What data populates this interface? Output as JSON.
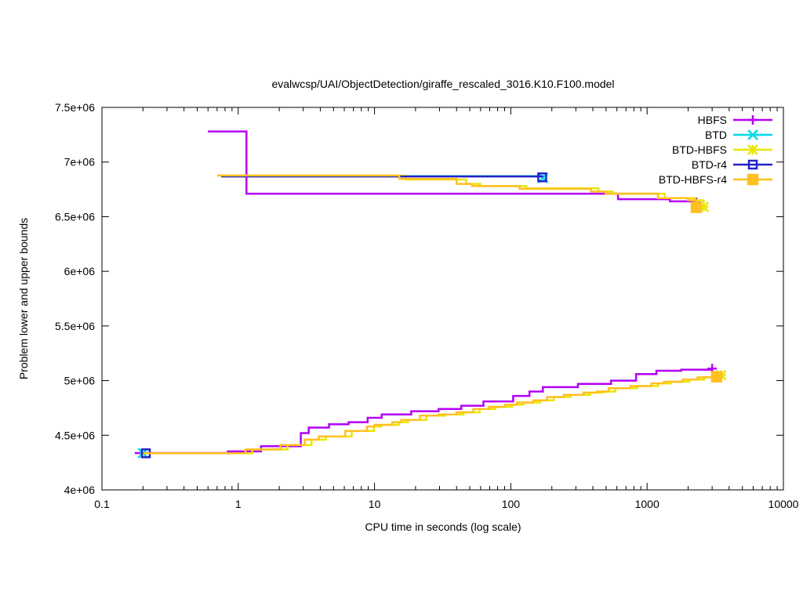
{
  "chart_data": {
    "type": "line",
    "title": "evalwcsp/UAI/ObjectDetection/giraffe_rescaled_3016.K10.F100.model",
    "xlabel": "CPU time in seconds (log scale)",
    "ylabel": "Problem lower and upper bounds",
    "xscale": "log",
    "xlim": [
      0.1,
      10000
    ],
    "ylim": [
      4000000,
      7500000
    ],
    "xticks": [
      {
        "v": 0.1,
        "label": "0.1"
      },
      {
        "v": 1,
        "label": "1"
      },
      {
        "v": 10,
        "label": "10"
      },
      {
        "v": 100,
        "label": "100"
      },
      {
        "v": 1000,
        "label": "1000"
      },
      {
        "v": 10000,
        "label": "10000"
      }
    ],
    "yticks": [
      {
        "v": 4000000,
        "label": "4e+06"
      },
      {
        "v": 4500000,
        "label": "4.5e+06"
      },
      {
        "v": 5000000,
        "label": "5e+06"
      },
      {
        "v": 5500000,
        "label": "5.5e+06"
      },
      {
        "v": 6000000,
        "label": "6e+06"
      },
      {
        "v": 6500000,
        "label": "6.5e+06"
      },
      {
        "v": 7000000,
        "label": "7e+06"
      },
      {
        "v": 7500000,
        "label": "7.5e+06"
      }
    ],
    "legend_position": "top-right",
    "series": [
      {
        "name": "HBFS",
        "color": "#b400f5",
        "marker": "plus",
        "upper": [
          [
            0.6,
            7280000
          ],
          [
            1.15,
            6710000
          ],
          [
            612,
            6660000
          ],
          [
            1470,
            6640000
          ],
          [
            2300,
            6630000
          ]
        ],
        "lower": [
          [
            0.174,
            4337000
          ],
          [
            0.84,
            4352000
          ],
          [
            1.47,
            4400000
          ],
          [
            2.88,
            4520000
          ],
          [
            3.29,
            4570000
          ],
          [
            4.64,
            4600000
          ],
          [
            6.45,
            4620000
          ],
          [
            8.9,
            4660000
          ],
          [
            11.3,
            4690000
          ],
          [
            18.6,
            4720000
          ],
          [
            29.5,
            4740000
          ],
          [
            43.3,
            4770000
          ],
          [
            63,
            4810000
          ],
          [
            104,
            4860000
          ],
          [
            137,
            4900000
          ],
          [
            172,
            4940000
          ],
          [
            311,
            4970000
          ],
          [
            544,
            5000000
          ],
          [
            830,
            5060000
          ],
          [
            1170,
            5090000
          ],
          [
            1780,
            5100000
          ],
          [
            3000,
            5110000
          ]
        ]
      },
      {
        "name": "BTD",
        "color": "#00dce6",
        "marker": "cross",
        "upper": [
          [
            0.75,
            6870000
          ],
          [
            172,
            6855000
          ]
        ],
        "lower": [
          [
            0.19,
            4336000
          ],
          [
            0.2,
            4336000
          ]
        ]
      },
      {
        "name": "BTD-HBFS",
        "color": "#e8e800",
        "marker": "star",
        "upper": [
          [
            0.7,
            6875000
          ],
          [
            17,
            6840000
          ],
          [
            47,
            6800000
          ],
          [
            60,
            6780000
          ],
          [
            130,
            6760000
          ],
          [
            440,
            6730000
          ],
          [
            560,
            6710000
          ],
          [
            1350,
            6670000
          ],
          [
            2250,
            6650000
          ],
          [
            2600,
            6590000
          ]
        ],
        "lower": [
          [
            0.2,
            4335000
          ],
          [
            1.27,
            4370000
          ],
          [
            2.3,
            4410000
          ],
          [
            3.45,
            4460000
          ],
          [
            4.4,
            4490000
          ],
          [
            6.8,
            4540000
          ],
          [
            9.9,
            4580000
          ],
          [
            11.2,
            4595000
          ],
          [
            15.1,
            4620000
          ],
          [
            17.6,
            4640000
          ],
          [
            24,
            4680000
          ],
          [
            33,
            4690000
          ],
          [
            45,
            4710000
          ],
          [
            59,
            4740000
          ],
          [
            77,
            4760000
          ],
          [
            102,
            4780000
          ],
          [
            124,
            4800000
          ],
          [
            164,
            4820000
          ],
          [
            207,
            4850000
          ],
          [
            274,
            4870000
          ],
          [
            382,
            4890000
          ],
          [
            478,
            4900000
          ],
          [
            585,
            4930000
          ],
          [
            845,
            4950000
          ],
          [
            1200,
            4975000
          ],
          [
            1490,
            4990000
          ],
          [
            2040,
            5010000
          ],
          [
            2620,
            5030000
          ],
          [
            3500,
            5050000
          ]
        ]
      },
      {
        "name": "BTD-r4",
        "color": "#2222c8",
        "marker": "square-open",
        "upper": [
          [
            0.75,
            6868000
          ],
          [
            168,
            6868000
          ],
          [
            170,
            6860000
          ]
        ],
        "lower": [
          [
            0.2,
            4335000
          ],
          [
            0.21,
            4335000
          ]
        ]
      },
      {
        "name": "BTD-HBFS-r4",
        "color": "#ffc020",
        "marker": "square-filled",
        "upper": [
          [
            0.7,
            6877000
          ],
          [
            15.2,
            6845000
          ],
          [
            40,
            6800000
          ],
          [
            52,
            6780000
          ],
          [
            116,
            6755000
          ],
          [
            388,
            6730000
          ],
          [
            497,
            6710000
          ],
          [
            1200,
            6670000
          ],
          [
            2000,
            6650000
          ],
          [
            2300,
            6585000
          ]
        ],
        "lower": [
          [
            0.2,
            4335000
          ],
          [
            1.13,
            4370000
          ],
          [
            2.04,
            4410000
          ],
          [
            3.08,
            4460000
          ],
          [
            3.9,
            4490000
          ],
          [
            6.1,
            4540000
          ],
          [
            8.8,
            4580000
          ],
          [
            10,
            4595000
          ],
          [
            13.5,
            4620000
          ],
          [
            15.7,
            4640000
          ],
          [
            21.5,
            4680000
          ],
          [
            29.5,
            4690000
          ],
          [
            40,
            4710000
          ],
          [
            53,
            4740000
          ],
          [
            69,
            4760000
          ],
          [
            91,
            4780000
          ],
          [
            111,
            4800000
          ],
          [
            146,
            4820000
          ],
          [
            185,
            4850000
          ],
          [
            245,
            4870000
          ],
          [
            341,
            4890000
          ],
          [
            427,
            4900000
          ],
          [
            522,
            4930000
          ],
          [
            754,
            4950000
          ],
          [
            1075,
            4975000
          ],
          [
            1330,
            4990000
          ],
          [
            1820,
            5010000
          ],
          [
            2340,
            5030000
          ],
          [
            3240,
            5035000
          ]
        ]
      }
    ]
  }
}
